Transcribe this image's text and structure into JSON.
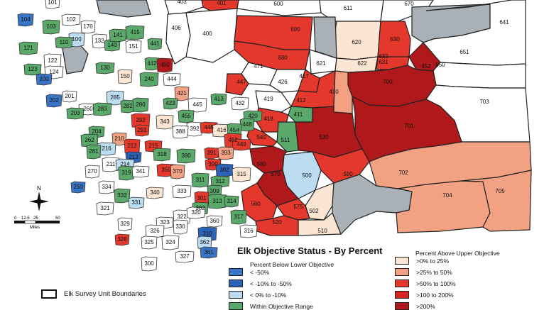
{
  "legend": {
    "title": "Elk Objective Status - By Percent",
    "below_title": "Percent Below Lower Objective",
    "above_title": "Percent Above Upper Objective",
    "below_items": [
      {
        "label": "< -50%",
        "color": "#3a74c4"
      },
      {
        "label": "< -10% to -50%",
        "color": "#2e64b8"
      },
      {
        "label": "<  0%  to -10%",
        "color": "#bcdcf2"
      },
      {
        "label": "Within Objective Range",
        "color": "#5aa86a"
      }
    ],
    "above_items": [
      {
        "label": ">0% to 25%",
        "color": "#fbe6d3"
      },
      {
        "label": ">25% to 50%",
        "color": "#f3a183"
      },
      {
        "label": ">50% to 100%",
        "color": "#e5382c"
      },
      {
        "label": ">100 to 200%",
        "color": "#d7241f"
      },
      {
        "label": ">200%",
        "color": "#b0191b"
      }
    ],
    "boundaries_label": "Elk Survey Unit Boundaries"
  },
  "compass": {
    "north": "N"
  },
  "scale": {
    "ticks": [
      "0",
      "12.5",
      "25",
      "50"
    ],
    "unit": "Miles"
  },
  "colors": {
    "within": "#5aa86a",
    "light_blue": "#bcdcf2",
    "mid_blue": "#3a74c4",
    "dark_blue": "#2e64b8",
    "cream": "#fbe6d3",
    "salmon": "#f3a183",
    "red": "#e5382c",
    "darkred": "#b0191b",
    "gray": "#a9b1b6",
    "white": "#ffffff"
  },
  "big_units": [
    {
      "label": "401",
      "status": "red"
    },
    {
      "label": "600",
      "status": "white"
    },
    {
      "label": "611",
      "status": "white"
    },
    {
      "label": "670",
      "status": "white"
    },
    {
      "label": "403",
      "status": "white"
    },
    {
      "label": "406",
      "status": "white"
    },
    {
      "label": "400",
      "status": "white"
    },
    {
      "label": "690",
      "status": "red"
    },
    {
      "label": "680",
      "status": "red"
    },
    {
      "label": "620",
      "status": "cream"
    },
    {
      "label": "630",
      "status": "red"
    },
    {
      "label": "641",
      "status": "gray"
    },
    {
      "label": "651",
      "status": "white"
    },
    {
      "label": "621",
      "status": "white"
    },
    {
      "label": "622",
      "status": "cream"
    },
    {
      "label": "632",
      "status": "red"
    },
    {
      "label": "631",
      "status": "red"
    },
    {
      "label": "652",
      "status": "darkred"
    },
    {
      "label": "650",
      "status": "white"
    },
    {
      "label": "471",
      "status": "white"
    },
    {
      "label": "417",
      "status": "red"
    },
    {
      "label": "426",
      "status": "white"
    },
    {
      "label": "700",
      "status": "darkred"
    },
    {
      "label": "447",
      "status": "red"
    },
    {
      "label": "412",
      "status": "red"
    },
    {
      "label": "410",
      "status": "salmon"
    },
    {
      "label": "703",
      "status": "white"
    },
    {
      "label": "419",
      "status": "white"
    },
    {
      "label": "701",
      "status": "darkred"
    },
    {
      "label": "411",
      "status": "within"
    },
    {
      "label": "418",
      "status": "red"
    },
    {
      "label": "530",
      "status": "darkred"
    },
    {
      "label": "511",
      "status": "within"
    },
    {
      "label": "540",
      "status": "red"
    },
    {
      "label": "702",
      "status": "salmon"
    },
    {
      "label": "704",
      "status": "salmon"
    },
    {
      "label": "705",
      "status": "salmon"
    },
    {
      "label": "500",
      "status": "light_blue"
    },
    {
      "label": "590",
      "status": "red"
    },
    {
      "label": "580",
      "status": "darkred"
    },
    {
      "label": "570",
      "status": "darkred"
    },
    {
      "label": "502",
      "status": "cream"
    },
    {
      "label": "510",
      "status": "cream"
    },
    {
      "label": "520",
      "status": "red"
    },
    {
      "label": "575",
      "status": "red"
    },
    {
      "label": "560",
      "status": "red"
    }
  ],
  "west_units": [
    {
      "label": "101",
      "status": "white"
    },
    {
      "label": "104",
      "status": "mid_blue"
    },
    {
      "label": "103",
      "status": "within"
    },
    {
      "label": "102",
      "status": "white"
    },
    {
      "label": "170",
      "status": "white"
    },
    {
      "label": "100",
      "status": "light_blue"
    },
    {
      "label": "110",
      "status": "within"
    },
    {
      "label": "121",
      "status": "within"
    },
    {
      "label": "132",
      "status": "white"
    },
    {
      "label": "140",
      "status": "within"
    },
    {
      "label": "141",
      "status": "within"
    },
    {
      "label": "415",
      "status": "within"
    },
    {
      "label": "441",
      "status": "within"
    },
    {
      "label": "151",
      "status": "white"
    },
    {
      "label": "122",
      "status": "white"
    },
    {
      "label": "130",
      "status": "within"
    },
    {
      "label": "442",
      "status": "within"
    },
    {
      "label": "450",
      "status": "darkred"
    },
    {
      "label": "123",
      "status": "within"
    },
    {
      "label": "124",
      "status": "white"
    },
    {
      "label": "150",
      "status": "cream"
    },
    {
      "label": "200",
      "status": "mid_blue"
    },
    {
      "label": "444",
      "status": "white"
    },
    {
      "label": "240",
      "status": "within"
    },
    {
      "label": "201",
      "status": "white"
    },
    {
      "label": "202",
      "status": "mid_blue"
    },
    {
      "label": "285",
      "status": "light_blue"
    },
    {
      "label": "260",
      "status": "white"
    },
    {
      "label": "282",
      "status": "within"
    },
    {
      "label": "280",
      "status": "within"
    },
    {
      "label": "203",
      "status": "within"
    },
    {
      "label": "283",
      "status": "within"
    },
    {
      "label": "421",
      "status": "salmon"
    },
    {
      "label": "413",
      "status": "within"
    },
    {
      "label": "432",
      "status": "white"
    },
    {
      "label": "445",
      "status": "white"
    },
    {
      "label": "423",
      "status": "within"
    },
    {
      "label": "455",
      "status": "within"
    },
    {
      "label": "343",
      "status": "cream"
    },
    {
      "label": "420",
      "status": "within"
    },
    {
      "label": "448",
      "status": "within"
    },
    {
      "label": "392",
      "status": "white"
    },
    {
      "label": "446",
      "status": "red"
    },
    {
      "label": "416",
      "status": "cream"
    },
    {
      "label": "454",
      "status": "within"
    },
    {
      "label": "204",
      "status": "within"
    },
    {
      "label": "262",
      "status": "within"
    },
    {
      "label": "292",
      "status": "red"
    },
    {
      "label": "291",
      "status": "red"
    },
    {
      "label": "388",
      "status": "white"
    },
    {
      "label": "452",
      "status": "red"
    },
    {
      "label": "449",
      "status": "red"
    },
    {
      "label": "210",
      "status": "salmon"
    },
    {
      "label": "212",
      "status": "red"
    },
    {
      "label": "215",
      "status": "red"
    },
    {
      "label": "216",
      "status": "light_blue"
    },
    {
      "label": "261",
      "status": "within"
    },
    {
      "label": "213",
      "status": "dark_blue"
    },
    {
      "label": "318",
      "status": "within"
    },
    {
      "label": "380",
      "status": "within"
    },
    {
      "label": "391",
      "status": "red"
    },
    {
      "label": "393",
      "status": "salmon"
    },
    {
      "label": "211",
      "status": "white"
    },
    {
      "label": "214",
      "status": "light_blue"
    },
    {
      "label": "270",
      "status": "white"
    },
    {
      "label": "319",
      "status": "within"
    },
    {
      "label": "341",
      "status": "white"
    },
    {
      "label": "350",
      "status": "red"
    },
    {
      "label": "370",
      "status": "salmon"
    },
    {
      "label": "390",
      "status": "red"
    },
    {
      "label": "362",
      "status": "dark_blue"
    },
    {
      "label": "315",
      "status": "cream"
    },
    {
      "label": "250",
      "status": "mid_blue"
    },
    {
      "label": "334",
      "status": "white"
    },
    {
      "label": "311",
      "status": "within"
    },
    {
      "label": "312",
      "status": "within"
    },
    {
      "label": "309",
      "status": "within"
    },
    {
      "label": "332",
      "status": "within"
    },
    {
      "label": "340",
      "status": "cream"
    },
    {
      "label": "333",
      "status": "white"
    },
    {
      "label": "301",
      "status": "red"
    },
    {
      "label": "331",
      "status": "light_blue"
    },
    {
      "label": "321",
      "status": "white"
    },
    {
      "label": "313",
      "status": "within"
    },
    {
      "label": "314",
      "status": "within"
    },
    {
      "label": "302",
      "status": "within"
    },
    {
      "label": "322",
      "status": "white"
    },
    {
      "label": "320",
      "status": "white"
    },
    {
      "label": "329",
      "status": "white"
    },
    {
      "label": "317",
      "status": "within"
    },
    {
      "label": "323",
      "status": "white"
    },
    {
      "label": "326",
      "status": "white"
    },
    {
      "label": "330",
      "status": "white"
    },
    {
      "label": "360",
      "status": "white"
    },
    {
      "label": "316",
      "status": "white"
    },
    {
      "label": "310",
      "status": "dark_blue"
    },
    {
      "label": "328",
      "status": "red"
    },
    {
      "label": "325",
      "status": "white"
    },
    {
      "label": "324",
      "status": "white"
    },
    {
      "label": "327",
      "status": "white"
    },
    {
      "label": "362b",
      "status": "light_blue"
    },
    {
      "label": "300",
      "status": "white"
    },
    {
      "label": "361",
      "status": "mid_blue"
    }
  ]
}
